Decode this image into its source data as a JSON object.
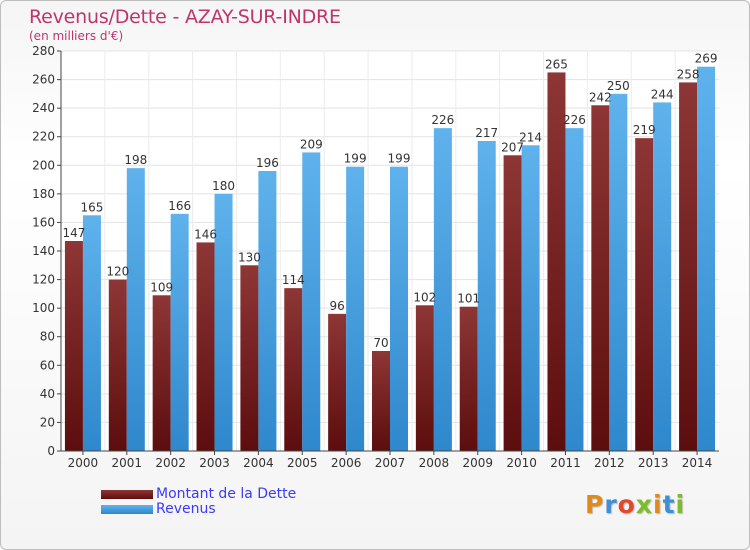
{
  "title": "Revenus/Dette - AZAY-SUR-INDRE",
  "subtitle": "(en milliers d'€)",
  "logo": {
    "text": "Proxiti",
    "colors": [
      "#e08a1a",
      "#3d8fd6",
      "#e04a2a",
      "#7cbd2a",
      "#e08a1a",
      "#3d8fd6",
      "#7cbd2a"
    ]
  },
  "chart_data": {
    "type": "bar",
    "categories": [
      "2000",
      "2001",
      "2002",
      "2003",
      "2004",
      "2005",
      "2006",
      "2007",
      "2008",
      "2009",
      "2010",
      "2011",
      "2012",
      "2013",
      "2014"
    ],
    "series": [
      {
        "name": "Montant de la Dette",
        "color": "#7a1c1c",
        "values": [
          147,
          120,
          109,
          146,
          130,
          114,
          96,
          70,
          102,
          101,
          207,
          265,
          242,
          219,
          258
        ]
      },
      {
        "name": "Revenus",
        "color": "#3a9be0",
        "values": [
          165,
          198,
          166,
          180,
          196,
          209,
          199,
          199,
          226,
          217,
          214,
          226,
          250,
          244,
          269
        ]
      }
    ],
    "yticks": [
      0,
      20,
      40,
      60,
      80,
      100,
      120,
      140,
      160,
      180,
      200,
      220,
      240,
      260,
      280
    ],
    "ylim": [
      0,
      280
    ],
    "grid": true,
    "legend_position": "bottom-left"
  }
}
